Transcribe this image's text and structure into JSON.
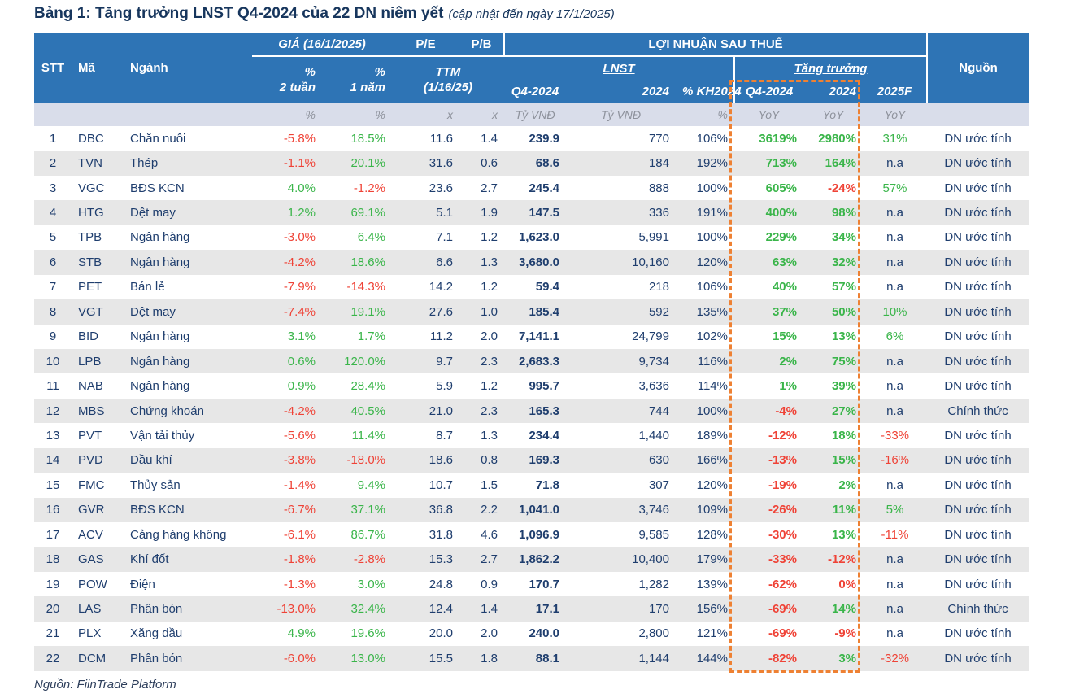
{
  "title": {
    "main": "Bảng 1: Tăng trưởng LNST Q4-2024 của 22 DN niêm yết",
    "note": "(cập nhật đến ngày 17/1/2025)"
  },
  "table": {
    "header": {
      "stt": "STT",
      "ma": "Mã",
      "nganh": "Ngành",
      "gia_group": "GIÁ (16/1/2025)",
      "pct_2w": "%\n2 tuần",
      "pct_1y": "%\n1 năm",
      "pe": "P/E",
      "pb": "P/B",
      "ttm": "TTM\n(1/16/25)",
      "lnst_group": "LỢI NHUẬN SAU THUẾ",
      "lnst_sub": "LNST",
      "growth_sub": "Tăng trưởng",
      "col_q4_2024": "Q4-2024",
      "col_2024": "2024",
      "col_kh2024": "% KH2024",
      "col_gr_q4": "Q4-2024",
      "col_gr_2024": "2024",
      "col_2025f": "2025F",
      "nguon": "Nguồn"
    },
    "units": [
      "%",
      "%",
      "x",
      "x",
      "Tỷ VNĐ",
      "Tỷ VNĐ",
      "%",
      "YoY",
      "YoY",
      "YoY"
    ],
    "rows": [
      {
        "stt": "1",
        "ma": "DBC",
        "nganh": "Chăn nuôi",
        "p2w": "-5.8%",
        "p1y": "18.5%",
        "pe": "11.6",
        "pb": "1.4",
        "q4": "239.9",
        "y2024": "770",
        "kh": "106%",
        "gr_q4": "3619%",
        "gr_2024": "2980%",
        "f2025": "31%",
        "nguon": "DN ước tính"
      },
      {
        "stt": "2",
        "ma": "TVN",
        "nganh": "Thép",
        "p2w": "-1.1%",
        "p1y": "20.1%",
        "pe": "31.6",
        "pb": "0.6",
        "q4": "68.6",
        "y2024": "184",
        "kh": "192%",
        "gr_q4": "713%",
        "gr_2024": "164%",
        "f2025": "n.a",
        "nguon": "DN ước tính"
      },
      {
        "stt": "3",
        "ma": "VGC",
        "nganh": "BĐS KCN",
        "p2w": "4.0%",
        "p1y": "-1.2%",
        "pe": "23.6",
        "pb": "2.7",
        "q4": "245.4",
        "y2024": "888",
        "kh": "100%",
        "gr_q4": "605%",
        "gr_2024": "-24%",
        "f2025": "57%",
        "nguon": "DN ước tính"
      },
      {
        "stt": "4",
        "ma": "HTG",
        "nganh": "Dệt may",
        "p2w": "1.2%",
        "p1y": "69.1%",
        "pe": "5.1",
        "pb": "1.9",
        "q4": "147.5",
        "y2024": "336",
        "kh": "191%",
        "gr_q4": "400%",
        "gr_2024": "98%",
        "f2025": "n.a",
        "nguon": "DN ước tính"
      },
      {
        "stt": "5",
        "ma": "TPB",
        "nganh": "Ngân hàng",
        "p2w": "-3.0%",
        "p1y": "6.4%",
        "pe": "7.1",
        "pb": "1.2",
        "q4": "1,623.0",
        "y2024": "5,991",
        "kh": "100%",
        "gr_q4": "229%",
        "gr_2024": "34%",
        "f2025": "n.a",
        "nguon": "DN ước tính"
      },
      {
        "stt": "6",
        "ma": "STB",
        "nganh": "Ngân hàng",
        "p2w": "-4.2%",
        "p1y": "18.6%",
        "pe": "6.6",
        "pb": "1.3",
        "q4": "3,680.0",
        "y2024": "10,160",
        "kh": "120%",
        "gr_q4": "63%",
        "gr_2024": "32%",
        "f2025": "n.a",
        "nguon": "DN ước tính"
      },
      {
        "stt": "7",
        "ma": "PET",
        "nganh": "Bán lẻ",
        "p2w": "-7.9%",
        "p1y": "-14.3%",
        "pe": "14.2",
        "pb": "1.2",
        "q4": "59.4",
        "y2024": "218",
        "kh": "106%",
        "gr_q4": "40%",
        "gr_2024": "57%",
        "f2025": "n.a",
        "nguon": "DN ước tính"
      },
      {
        "stt": "8",
        "ma": "VGT",
        "nganh": "Dệt may",
        "p2w": "-7.4%",
        "p1y": "19.1%",
        "pe": "27.6",
        "pb": "1.0",
        "q4": "185.4",
        "y2024": "592",
        "kh": "135%",
        "gr_q4": "37%",
        "gr_2024": "50%",
        "f2025": "10%",
        "nguon": "DN ước tính"
      },
      {
        "stt": "9",
        "ma": "BID",
        "nganh": "Ngân hàng",
        "p2w": "3.1%",
        "p1y": "1.7%",
        "pe": "11.2",
        "pb": "2.0",
        "q4": "7,141.1",
        "y2024": "24,799",
        "kh": "102%",
        "gr_q4": "15%",
        "gr_2024": "13%",
        "f2025": "6%",
        "nguon": "DN ước tính"
      },
      {
        "stt": "10",
        "ma": "LPB",
        "nganh": "Ngân hàng",
        "p2w": "0.6%",
        "p1y": "120.0%",
        "pe": "9.7",
        "pb": "2.3",
        "q4": "2,683.3",
        "y2024": "9,734",
        "kh": "116%",
        "gr_q4": "2%",
        "gr_2024": "75%",
        "f2025": "n.a",
        "nguon": "DN ước tính"
      },
      {
        "stt": "11",
        "ma": "NAB",
        "nganh": "Ngân hàng",
        "p2w": "0.9%",
        "p1y": "28.4%",
        "pe": "5.9",
        "pb": "1.2",
        "q4": "995.7",
        "y2024": "3,636",
        "kh": "114%",
        "gr_q4": "1%",
        "gr_2024": "39%",
        "f2025": "n.a",
        "nguon": "DN ước tính"
      },
      {
        "stt": "12",
        "ma": "MBS",
        "nganh": "Chứng khoán",
        "p2w": "-4.2%",
        "p1y": "40.5%",
        "pe": "21.0",
        "pb": "2.3",
        "q4": "165.3",
        "y2024": "744",
        "kh": "100%",
        "gr_q4": "-4%",
        "gr_2024": "27%",
        "f2025": "n.a",
        "nguon": "Chính thức"
      },
      {
        "stt": "13",
        "ma": "PVT",
        "nganh": "Vận tải thủy",
        "p2w": "-5.6%",
        "p1y": "11.4%",
        "pe": "8.7",
        "pb": "1.3",
        "q4": "234.4",
        "y2024": "1,440",
        "kh": "189%",
        "gr_q4": "-12%",
        "gr_2024": "18%",
        "f2025": "-33%",
        "nguon": "DN ước tính"
      },
      {
        "stt": "14",
        "ma": "PVD",
        "nganh": "Dầu khí",
        "p2w": "-3.8%",
        "p1y": "-18.0%",
        "pe": "18.6",
        "pb": "0.8",
        "q4": "169.3",
        "y2024": "630",
        "kh": "166%",
        "gr_q4": "-13%",
        "gr_2024": "15%",
        "f2025": "-16%",
        "nguon": "DN ước tính"
      },
      {
        "stt": "15",
        "ma": "FMC",
        "nganh": "Thủy sản",
        "p2w": "-1.4%",
        "p1y": "9.4%",
        "pe": "10.7",
        "pb": "1.5",
        "q4": "71.8",
        "y2024": "307",
        "kh": "120%",
        "gr_q4": "-19%",
        "gr_2024": "2%",
        "f2025": "n.a",
        "nguon": "DN ước tính"
      },
      {
        "stt": "16",
        "ma": "GVR",
        "nganh": "BĐS KCN",
        "p2w": "-6.7%",
        "p1y": "37.1%",
        "pe": "36.8",
        "pb": "2.2",
        "q4": "1,041.0",
        "y2024": "3,746",
        "kh": "109%",
        "gr_q4": "-26%",
        "gr_2024": "11%",
        "f2025": "5%",
        "nguon": "DN ước tính"
      },
      {
        "stt": "17",
        "ma": "ACV",
        "nganh": "Cảng hàng không",
        "p2w": "-6.1%",
        "p1y": "86.7%",
        "pe": "31.8",
        "pb": "4.6",
        "q4": "1,096.9",
        "y2024": "9,585",
        "kh": "128%",
        "gr_q4": "-30%",
        "gr_2024": "13%",
        "f2025": "-11%",
        "nguon": "DN ước tính"
      },
      {
        "stt": "18",
        "ma": "GAS",
        "nganh": "Khí đốt",
        "p2w": "-1.8%",
        "p1y": "-2.8%",
        "pe": "15.3",
        "pb": "2.7",
        "q4": "1,862.2",
        "y2024": "10,400",
        "kh": "179%",
        "gr_q4": "-33%",
        "gr_2024": "-12%",
        "f2025": "n.a",
        "nguon": "DN ước tính"
      },
      {
        "stt": "19",
        "ma": "POW",
        "nganh": "Điện",
        "p2w": "-1.3%",
        "p1y": "3.0%",
        "pe": "24.8",
        "pb": "0.9",
        "q4": "170.7",
        "y2024": "1,282",
        "kh": "139%",
        "gr_q4": "-62%",
        "gr_2024": "0%",
        "f2025": "n.a",
        "nguon": "DN ước tính"
      },
      {
        "stt": "20",
        "ma": "LAS",
        "nganh": "Phân bón",
        "p2w": "-13.0%",
        "p1y": "32.4%",
        "pe": "12.4",
        "pb": "1.4",
        "q4": "17.1",
        "y2024": "170",
        "kh": "156%",
        "gr_q4": "-69%",
        "gr_2024": "14%",
        "f2025": "n.a",
        "nguon": "Chính thức"
      },
      {
        "stt": "21",
        "ma": "PLX",
        "nganh": "Xăng dầu",
        "p2w": "4.9%",
        "p1y": "19.6%",
        "pe": "20.0",
        "pb": "2.0",
        "q4": "240.0",
        "y2024": "2,800",
        "kh": "121%",
        "gr_q4": "-69%",
        "gr_2024": "-9%",
        "f2025": "n.a",
        "nguon": "DN ước tính"
      },
      {
        "stt": "22",
        "ma": "DCM",
        "nganh": "Phân bón",
        "p2w": "-6.0%",
        "p1y": "13.0%",
        "pe": "15.5",
        "pb": "1.8",
        "q4": "88.1",
        "y2024": "1,144",
        "kh": "144%",
        "gr_q4": "-82%",
        "gr_2024": "3%",
        "f2025": "-32%",
        "nguon": "DN ước tính"
      }
    ]
  },
  "footer": {
    "source": "Nguồn: FiinTrade Platform"
  },
  "colors": {
    "header_bg": "#2E74B5",
    "positive": "#3AB54A",
    "negative": "#EF4337",
    "highlight_box": "#EE8133",
    "text_navy": "#1F3E6E",
    "unit_row_bg": "#D9DDEA",
    "stripe_row_bg": "#E7E7E7"
  }
}
